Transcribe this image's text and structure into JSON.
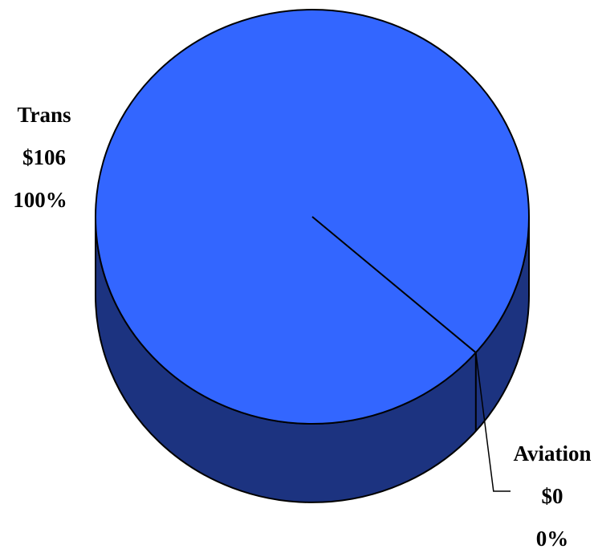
{
  "chart_data": {
    "type": "pie",
    "style": "3d",
    "slices": [
      {
        "label": "Trans",
        "value_label": "$106",
        "percent_label": "100%",
        "value": 106,
        "percent": 100,
        "color": "#3366ff",
        "side_color": "#1c3380"
      },
      {
        "label": "Aviation",
        "value_label": "$0",
        "percent_label": "0%",
        "value": 0,
        "percent": 0,
        "color": "#3366ff",
        "side_color": "#1c3380"
      }
    ]
  }
}
